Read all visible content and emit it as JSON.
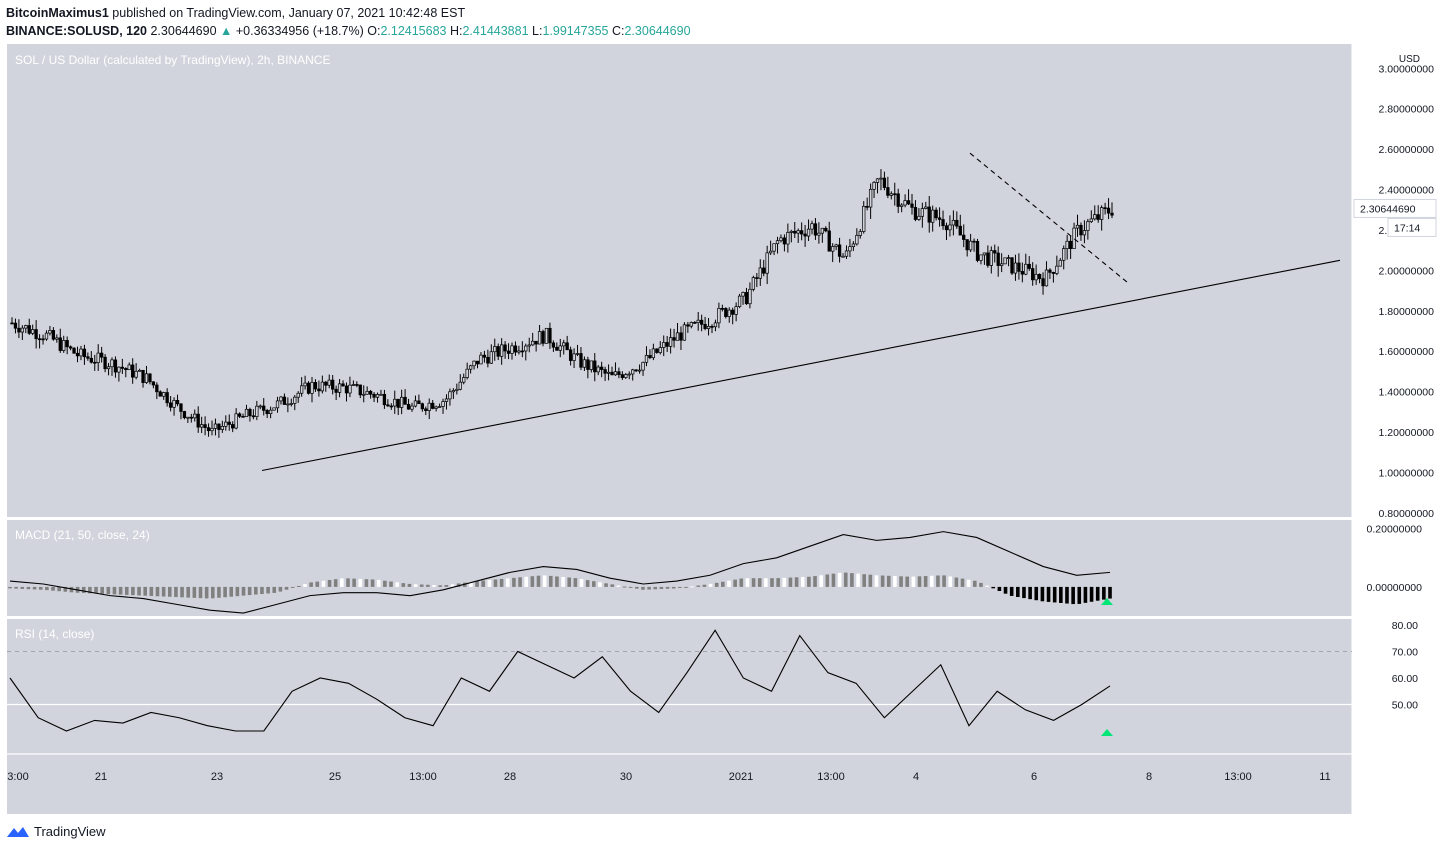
{
  "header": {
    "author": "BitcoinMaximus1",
    "published": "published on TradingView.com, January 07, 2021 10:42:48 EST",
    "symbol": "BINANCE:SOLUSD, 120",
    "price": "2.30644690",
    "arrow": "▲",
    "change": "+0.36334956 (+18.7%)",
    "o_label": "O:",
    "o_value": "2.12415683",
    "h_label": "H:",
    "h_value": "2.41443881",
    "l_label": "L:",
    "l_value": "1.99147355",
    "c_label": "C:",
    "c_value": "2.30644690"
  },
  "footer": {
    "brand": "TradingView",
    "logo_icon": "tradingview-logo-icon"
  },
  "colors": {
    "pane_bg": "#d1d4dc",
    "axis_bg": "#ffffff",
    "candle": "#000000",
    "up_text": "#26a69a",
    "signal_arrow": "#00e676",
    "hist_dark": "#000000",
    "hist_mid": "#808080",
    "hist_light": "#ffffff"
  },
  "chart_data": [
    {
      "type": "candlestick",
      "title": "SOL / US Dollar (calculated by TradingView), 2h, BINANCE",
      "currency": "USD",
      "yticks": [
        "3.00000000",
        "2.80000000",
        "2.60000000",
        "2.40000000",
        "2.20000000",
        "2.00000000",
        "1.80000000",
        "1.60000000",
        "1.40000000",
        "1.20000000",
        "1.00000000",
        "0.80000000"
      ],
      "ylim": [
        0.78,
        3.12
      ],
      "last_price_label": "2.30644690",
      "countdown_label": "17:14",
      "xticks": [
        "3:00",
        "21",
        "23",
        "25",
        "13:00",
        "28",
        "30",
        "2021",
        "13:00",
        "4",
        "6",
        "8",
        "13:00",
        "11"
      ],
      "series": [
        {
          "name": "price",
          "points": [
            [
              "Dec 19",
              1.74
            ],
            [
              "Dec 20",
              1.68
            ],
            [
              "Dec 21",
              1.58
            ],
            [
              "Dec 22",
              1.54
            ],
            [
              "Dec 23",
              1.47
            ],
            [
              "Dec 23",
              1.32
            ],
            [
              "Dec 24",
              1.2
            ],
            [
              "Dec 24",
              1.28
            ],
            [
              "Dec 25",
              1.34
            ],
            [
              "Dec 25",
              1.43
            ],
            [
              "Dec 26",
              1.42
            ],
            [
              "Dec 27",
              1.38
            ],
            [
              "Dec 27",
              1.32
            ],
            [
              "Dec 28",
              1.36
            ],
            [
              "Dec 29",
              1.56
            ],
            [
              "Dec 29",
              1.62
            ],
            [
              "Dec 30",
              1.68
            ],
            [
              "Dec 31",
              1.55
            ],
            [
              "Dec 31",
              1.47
            ],
            [
              "Jan 1",
              1.55
            ],
            [
              "Jan 2",
              1.68
            ],
            [
              "Jan 2",
              1.76
            ],
            [
              "Jan 3",
              1.86
            ],
            [
              "Jan 3",
              2.15
            ],
            [
              "Jan 4",
              2.22
            ],
            [
              "Jan 4",
              2.06
            ],
            [
              "Jan 5",
              2.45
            ],
            [
              "Jan 5",
              2.3
            ],
            [
              "Jan 5",
              2.25
            ],
            [
              "Jan 6",
              2.08
            ],
            [
              "Jan 6",
              2.02
            ],
            [
              "Jan 7",
              1.96
            ],
            [
              "Jan 7",
              2.2
            ],
            [
              "Jan 7",
              2.3064469
            ]
          ]
        }
      ],
      "annotations": [
        {
          "kind": "trendline",
          "style": "solid",
          "from": [
            "Dec 24",
            1.01
          ],
          "to": [
            "Jan 10",
            2.05
          ]
        },
        {
          "kind": "trendline",
          "style": "dashed",
          "from": [
            "Jan 5",
            2.58
          ],
          "to": [
            "Jan 7",
            1.93
          ]
        }
      ]
    },
    {
      "type": "macd",
      "title": "MACD (21, 50, close, 24)",
      "yticks": [
        "0.20000000",
        "0.00000000"
      ],
      "ylim": [
        -0.1,
        0.23
      ],
      "series": [
        {
          "name": "macd",
          "values": [
            0.02,
            0.01,
            -0.01,
            -0.03,
            -0.04,
            -0.06,
            -0.08,
            -0.09,
            -0.06,
            -0.03,
            -0.02,
            -0.02,
            -0.03,
            -0.01,
            0.02,
            0.05,
            0.07,
            0.06,
            0.03,
            0.01,
            0.02,
            0.04,
            0.08,
            0.1,
            0.14,
            0.18,
            0.16,
            0.17,
            0.19,
            0.17,
            0.12,
            0.07,
            0.04,
            0.05
          ]
        },
        {
          "name": "histogram",
          "values": [
            -0.005,
            -0.01,
            -0.02,
            -0.025,
            -0.03,
            -0.035,
            -0.04,
            -0.03,
            -0.02,
            0.015,
            0.03,
            0.025,
            0.01,
            0.005,
            0.02,
            0.03,
            0.04,
            0.03,
            0.01,
            -0.01,
            -0.005,
            0.01,
            0.03,
            0.03,
            0.035,
            0.05,
            0.04,
            0.035,
            0.04,
            0.02,
            -0.03,
            -0.05,
            -0.06,
            -0.04
          ]
        }
      ],
      "signal": "up-arrow"
    },
    {
      "type": "rsi",
      "title": "RSI (14, close)",
      "yticks": [
        "80.00",
        "70.00",
        "60.00",
        "50.00"
      ],
      "ylim": [
        40,
        80
      ],
      "levels": [
        70,
        50
      ],
      "series": [
        {
          "name": "rsi",
          "values": [
            60,
            45,
            40,
            44,
            43,
            47,
            45,
            42,
            40,
            40,
            55,
            60,
            58,
            52,
            45,
            42,
            60,
            55,
            70,
            65,
            60,
            68,
            55,
            47,
            62,
            78,
            60,
            55,
            76,
            62,
            58,
            45,
            55,
            65,
            42,
            55,
            48,
            44,
            50,
            57
          ]
        }
      ],
      "signal": "up-arrow"
    }
  ]
}
